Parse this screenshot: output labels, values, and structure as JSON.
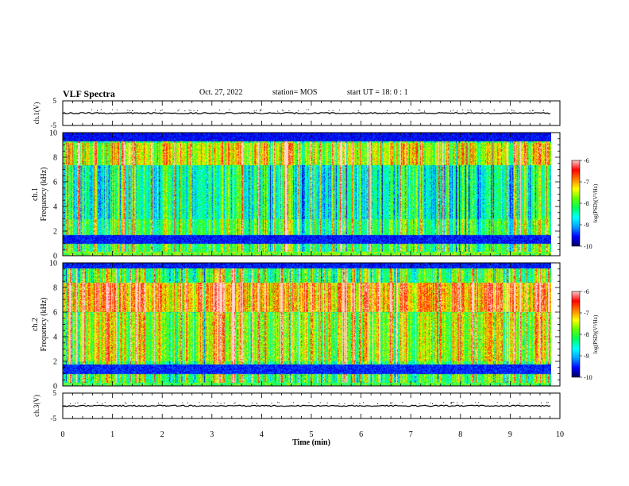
{
  "header": {
    "title": "VLF Spectra",
    "date": "Oct. 27, 2022",
    "station": "station= MOS",
    "start": "start  UT  =    18: 0  : 1"
  },
  "chart_data": [
    {
      "type": "line",
      "panel": "ch1-waveform",
      "ylabel": "ch.1(V)",
      "ylim": [
        -5,
        5
      ],
      "ytick_labels": [
        "5",
        "-5"
      ],
      "xlim": [
        0,
        10
      ],
      "series": [
        {
          "values_description_free": true,
          "x": [
            0,
            9.83
          ],
          "y": [
            0,
            0
          ]
        }
      ]
    },
    {
      "type": "heatmap",
      "panel": "ch1-spectrogram",
      "ylabel": "ch.1\nFrequency (kHz)",
      "ylim": [
        0,
        10
      ],
      "yticks": [
        0,
        2,
        4,
        6,
        8,
        10
      ],
      "xlim": [
        0,
        10
      ],
      "data_extent_x": [
        0,
        9.83
      ],
      "colorbar": {
        "label": "log(PSD)(V²/Hz)",
        "range": [
          -10,
          -6
        ],
        "ticks": [
          -6,
          -7,
          -8,
          -9,
          -10
        ]
      }
    },
    {
      "type": "heatmap",
      "panel": "ch2-spectrogram",
      "ylabel": "ch.2\nFrequency (kHz)",
      "ylim": [
        0,
        10
      ],
      "yticks": [
        0,
        2,
        4,
        6,
        8,
        10
      ],
      "xlim": [
        0,
        10
      ],
      "data_extent_x": [
        0,
        9.83
      ],
      "colorbar": {
        "label": "log(PSD)(V²/Hz)",
        "range": [
          -10,
          -6
        ],
        "ticks": [
          -6,
          -7,
          -8,
          -9,
          -10
        ]
      }
    },
    {
      "type": "line",
      "panel": "ch3-waveform",
      "ylabel": "ch.3(V)",
      "ylim": [
        -5,
        5
      ],
      "ytick_labels": [
        "5",
        "-5"
      ],
      "xlim": [
        0,
        10
      ],
      "series": [
        {
          "x": [
            0,
            9.83
          ],
          "y": [
            0,
            0
          ]
        }
      ]
    }
  ],
  "xaxis": {
    "label": "Time  (min)",
    "ticks": [
      0,
      1,
      2,
      3,
      4,
      5,
      6,
      7,
      8,
      9,
      10
    ]
  },
  "colors": {
    "colormap": [
      "#000060",
      "#0000ff",
      "#00a0ff",
      "#00ffff",
      "#00ff60",
      "#60ff00",
      "#ffff00",
      "#ff8000",
      "#ff0000",
      "#ffc8c8",
      "#ffffff"
    ]
  }
}
